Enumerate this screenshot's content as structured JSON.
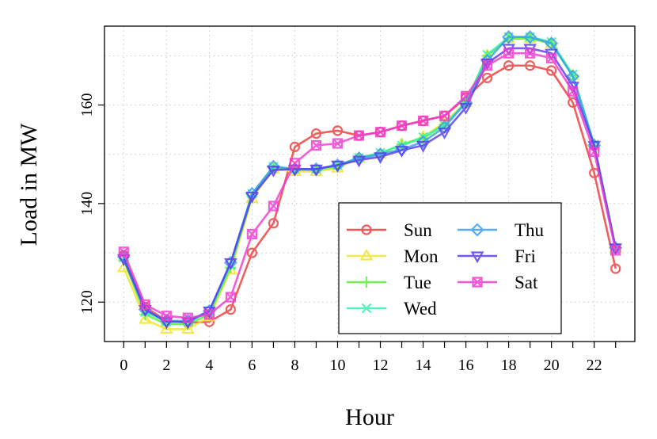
{
  "chart_data": {
    "type": "line",
    "xlabel": "Hour",
    "ylabel": "Load in MW",
    "x": [
      0,
      1,
      2,
      3,
      4,
      5,
      6,
      7,
      8,
      9,
      10,
      11,
      12,
      13,
      14,
      15,
      16,
      17,
      18,
      19,
      20,
      21,
      22,
      23
    ],
    "xlim": [
      -0.9,
      23.9
    ],
    "ylim": [
      112,
      176
    ],
    "xticks": [
      0,
      2,
      4,
      6,
      8,
      10,
      12,
      14,
      16,
      18,
      20,
      22
    ],
    "yticks": [
      120,
      140,
      160
    ],
    "grid": true,
    "legend_placement": "bottom-right",
    "legend_columns": 2,
    "series": [
      {
        "name": "Sun",
        "color": "#ee3b3b",
        "marker": "circle",
        "values": [
          129.5,
          119,
          116.2,
          115.8,
          116,
          118.5,
          130,
          136,
          151.5,
          154.2,
          154.8,
          153.8,
          154.5,
          155.8,
          156.8,
          157.8,
          161.5,
          165.5,
          168,
          168,
          167,
          160.5,
          146.2,
          126.8
        ]
      },
      {
        "name": "Mon",
        "color": "#f2e52a",
        "marker": "triangle",
        "values": [
          127,
          116.5,
          114.5,
          114.5,
          117,
          126.5,
          141,
          147,
          146.5,
          146.5,
          147.2,
          149.2,
          150,
          152,
          153.5,
          156.5,
          160.5,
          170,
          173.5,
          173.5,
          172.5,
          166,
          152,
          131
        ]
      },
      {
        "name": "Tue",
        "color": "#5ef03a",
        "marker": "plus",
        "values": [
          128.5,
          117.5,
          115.5,
          115.5,
          117.5,
          127,
          141.5,
          147.2,
          146.8,
          146.8,
          147.5,
          149.2,
          150.2,
          152,
          153.2,
          156,
          160.5,
          170,
          173.5,
          173.5,
          172.5,
          166,
          151.8,
          131
        ]
      },
      {
        "name": "Wed",
        "color": "#3af0b0",
        "marker": "x",
        "values": [
          129,
          118,
          116,
          116,
          118,
          127.5,
          142,
          147.5,
          147,
          147,
          147.8,
          149.3,
          150.3,
          151.8,
          153.5,
          156,
          160.5,
          170.2,
          173.8,
          173.8,
          172.8,
          166.2,
          152,
          131
        ]
      },
      {
        "name": "Thu",
        "color": "#3a9ff0",
        "marker": "diamond",
        "values": [
          129.2,
          118.5,
          116.2,
          116.2,
          118.2,
          128,
          142,
          147.5,
          147,
          147,
          147.8,
          149.2,
          150,
          151,
          152.5,
          155.5,
          160.5,
          169,
          173.8,
          173.8,
          172.5,
          165.8,
          151.8,
          131
        ]
      },
      {
        "name": "Fri",
        "color": "#5a3af0",
        "marker": "triangle-down",
        "values": [
          128.8,
          118.5,
          116,
          116,
          118.2,
          128,
          141.5,
          146.8,
          147,
          147,
          147.8,
          148.8,
          149.5,
          150.8,
          151.8,
          154.5,
          159.5,
          168.5,
          171.5,
          171.5,
          170.5,
          163.8,
          151.8,
          131
        ]
      },
      {
        "name": "Sat",
        "color": "#f03ad0",
        "marker": "square-x",
        "values": [
          130.2,
          119.5,
          117.2,
          116.8,
          117.5,
          121,
          133.8,
          139.5,
          148.2,
          151.8,
          152.2,
          153.8,
          154.5,
          155.8,
          156.8,
          157.8,
          161.8,
          168,
          170.5,
          170.5,
          169.5,
          162.8,
          150.5,
          130.5
        ]
      }
    ]
  }
}
